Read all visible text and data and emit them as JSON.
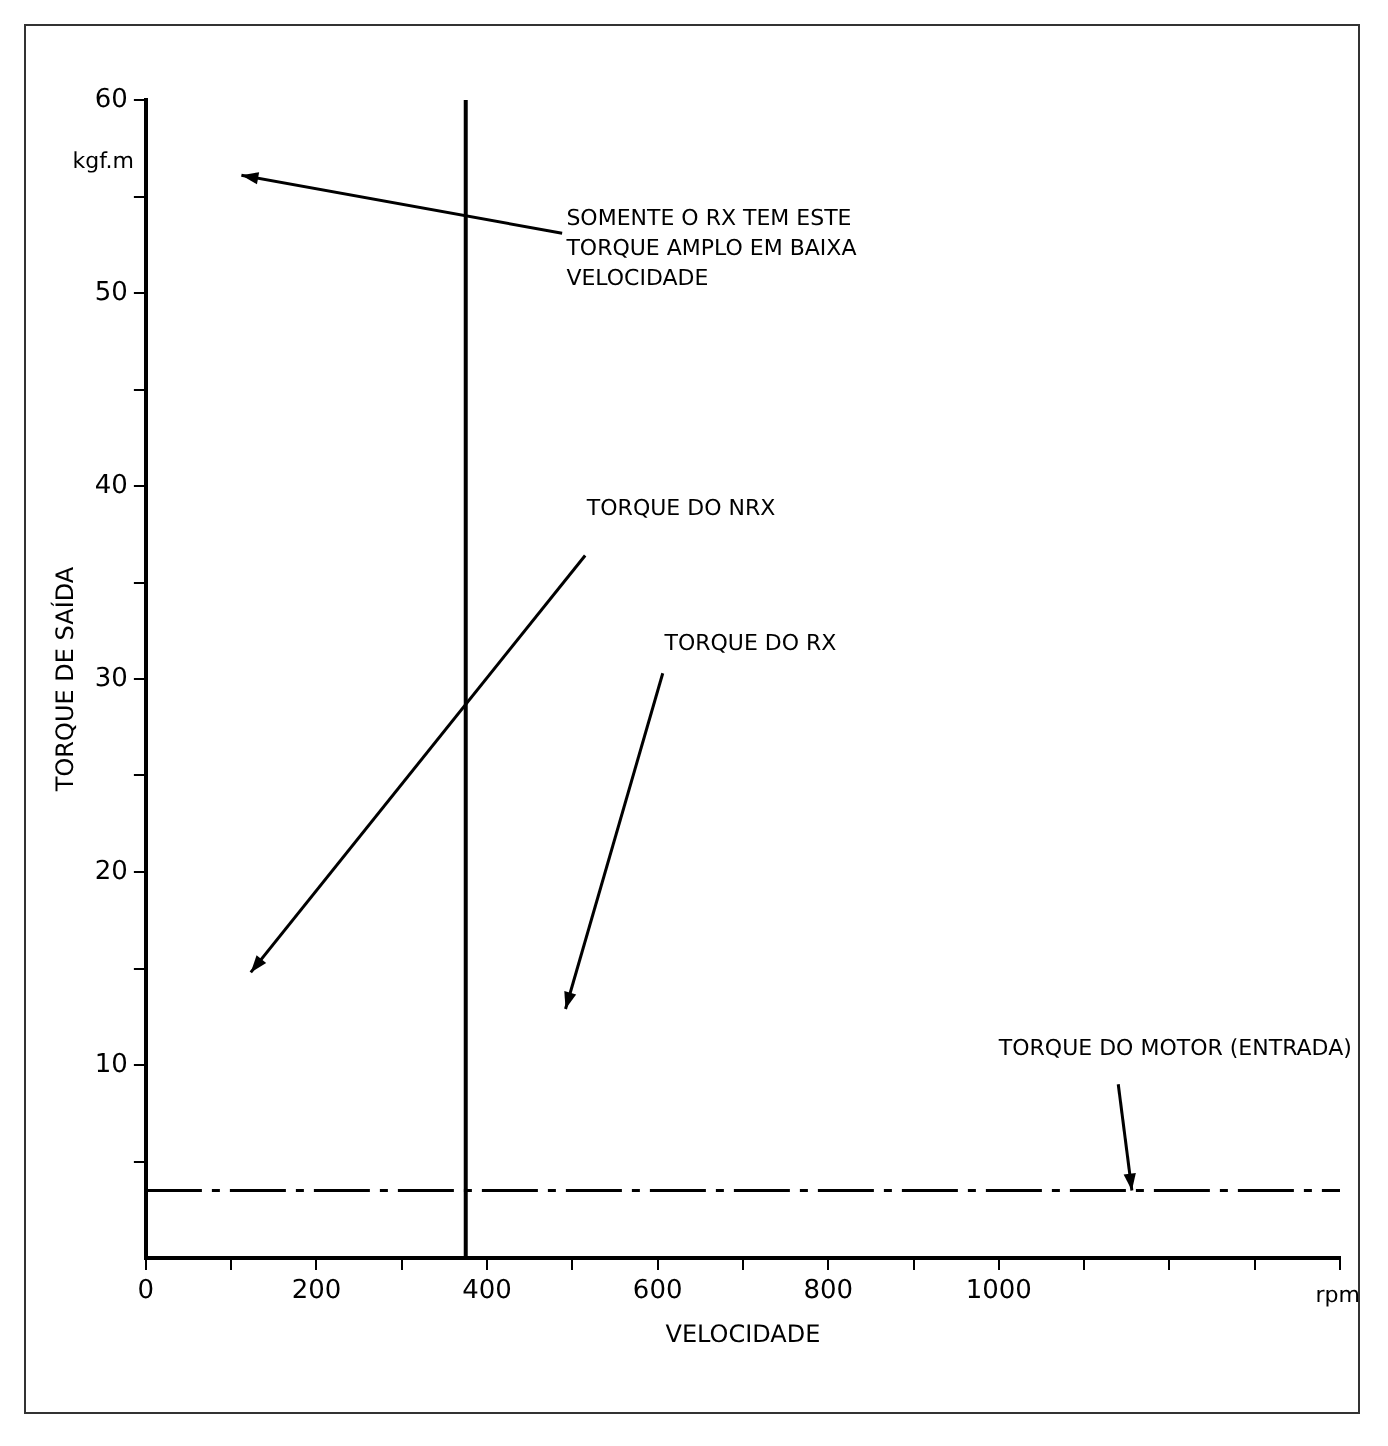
{
  "chart_data": {
    "type": "line",
    "xlabel": "VELOCIDADE",
    "ylabel": "TORQUE DE SAÍDA",
    "x": [
      0,
      1400
    ],
    "series": [
      {
        "color": "#000000",
        "values": [
          3.5,
          3.5
        ]
      }
    ],
    "xlim": [
      0,
      1400
    ],
    "ylim": [
      0,
      60
    ],
    "xticks": [
      0,
      {
        "value": 100,
        "label": null
      },
      200,
      {
        "value": 300,
        "label": null
      },
      400,
      {
        "value": 500,
        "label": null
      },
      600,
      {
        "value": 700,
        "label": null
      },
      800,
      {
        "value": 900,
        "label": null
      },
      1000,
      {
        "value": 1100,
        "label": null
      },
      {
        "value": 1200,
        "label": null
      },
      {
        "value": 1300,
        "label": null
      },
      {
        "value": 1400,
        "label": null
      }
    ],
    "yticks": [
      {
        "value": 5,
        "label": null
      },
      10,
      {
        "value": 15,
        "label": null
      },
      20,
      {
        "value": 25,
        "label": null
      },
      30,
      {
        "value": 35,
        "label": null
      },
      40,
      {
        "value": 45,
        "label": null
      },
      50,
      {
        "value": 55,
        "label": null
      },
      60
    ],
    "ref_lines": [
      {
        "axis": "x",
        "value": 375,
        "color": "#000000"
      }
    ],
    "annotations": [
      "kgf.m",
      "rpm",
      "SOMENTE O RX TEM ESTE TORQUE AMPLO EM BAIXA VELOCIDADE",
      "TORQUE DO NRX",
      "TORQUE DO RX",
      {
        "text": "TORQUE DO MOTOR (ENTRADA)",
        "x": 1156,
        "y": 3.5
      }
    ],
    "grid": false,
    "legend": false,
    "marker": "none",
    "line_style": "dashdot"
  }
}
